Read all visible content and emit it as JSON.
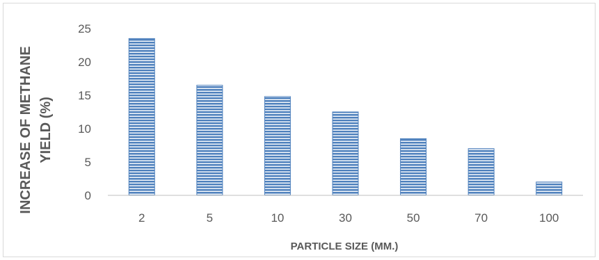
{
  "chart_data": {
    "type": "bar",
    "categories": [
      "2",
      "5",
      "10",
      "30",
      "50",
      "70",
      "100"
    ],
    "values": [
      23.5,
      16.5,
      14.8,
      12.5,
      8.5,
      7.0,
      2.0
    ],
    "xlabel": "PARTICLE SIZE (MM.)",
    "ylabel_lines": [
      "INCREASE OF METHANE",
      "YIELD (%)"
    ],
    "ylim": [
      0,
      25
    ],
    "yticks": [
      "0",
      "5",
      "10",
      "15",
      "20",
      "25"
    ],
    "grid": false,
    "legend": "none",
    "bar_fill": "#4f81bd",
    "bar_stripe": "#ffffff",
    "axis_color": "#bfbfbf"
  }
}
